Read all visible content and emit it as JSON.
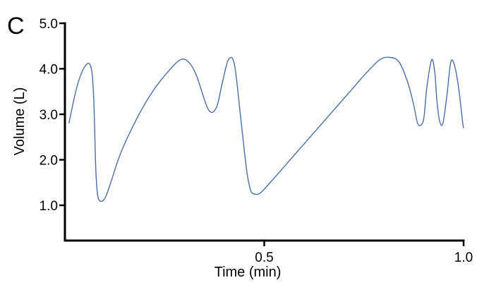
{
  "panel_label": "C",
  "colors": {
    "series": "#4a6da7",
    "axis": "#000000"
  },
  "chart_data": {
    "type": "line",
    "xlabel": "Time (min)",
    "ylabel": "Volume (L)",
    "xlim": [
      0.0,
      1.0
    ],
    "ylim": [
      0.0,
      5.0
    ],
    "x_ticks": [
      {
        "value": 0.5,
        "label": "0.5"
      },
      {
        "value": 1.0,
        "label": "1.0"
      }
    ],
    "y_ticks": [
      {
        "value": 1.0,
        "label": "1.0"
      },
      {
        "value": 2.0,
        "label": "2.0"
      },
      {
        "value": 3.0,
        "label": "3.0"
      },
      {
        "value": 4.0,
        "label": "4.0"
      },
      {
        "value": 5.0,
        "label": "5.0"
      }
    ],
    "grid": false,
    "series": [
      {
        "x": [
          0.01,
          0.03,
          0.05,
          0.065,
          0.072,
          0.077,
          0.081,
          0.087,
          0.1,
          0.115,
          0.14,
          0.18,
          0.22,
          0.26,
          0.29,
          0.31,
          0.33,
          0.36,
          0.38,
          0.395,
          0.41,
          0.425,
          0.44,
          0.45,
          0.457,
          0.461,
          0.467,
          0.475,
          0.49,
          0.52,
          0.56,
          0.6,
          0.64,
          0.68,
          0.72,
          0.755,
          0.79,
          0.815,
          0.838,
          0.86,
          0.875,
          0.883,
          0.89,
          0.9,
          0.908,
          0.92,
          0.928,
          0.933,
          0.94,
          0.948,
          0.958,
          0.968,
          0.978,
          0.988,
          0.998,
          1.0
        ],
        "y": [
          2.8,
          3.6,
          4.05,
          4.05,
          3.4,
          1.9,
          1.3,
          1.1,
          1.15,
          1.5,
          2.15,
          2.9,
          3.5,
          3.95,
          4.2,
          4.15,
          3.85,
          3.1,
          3.15,
          3.7,
          4.2,
          4.1,
          3.0,
          2.2,
          1.7,
          1.5,
          1.3,
          1.25,
          1.27,
          1.55,
          1.95,
          2.35,
          2.75,
          3.15,
          3.55,
          3.9,
          4.2,
          4.25,
          4.15,
          3.7,
          3.2,
          2.85,
          2.75,
          2.9,
          3.6,
          4.2,
          3.9,
          3.3,
          2.85,
          2.8,
          3.4,
          4.15,
          4.05,
          3.55,
          2.8,
          2.7
        ]
      }
    ]
  }
}
